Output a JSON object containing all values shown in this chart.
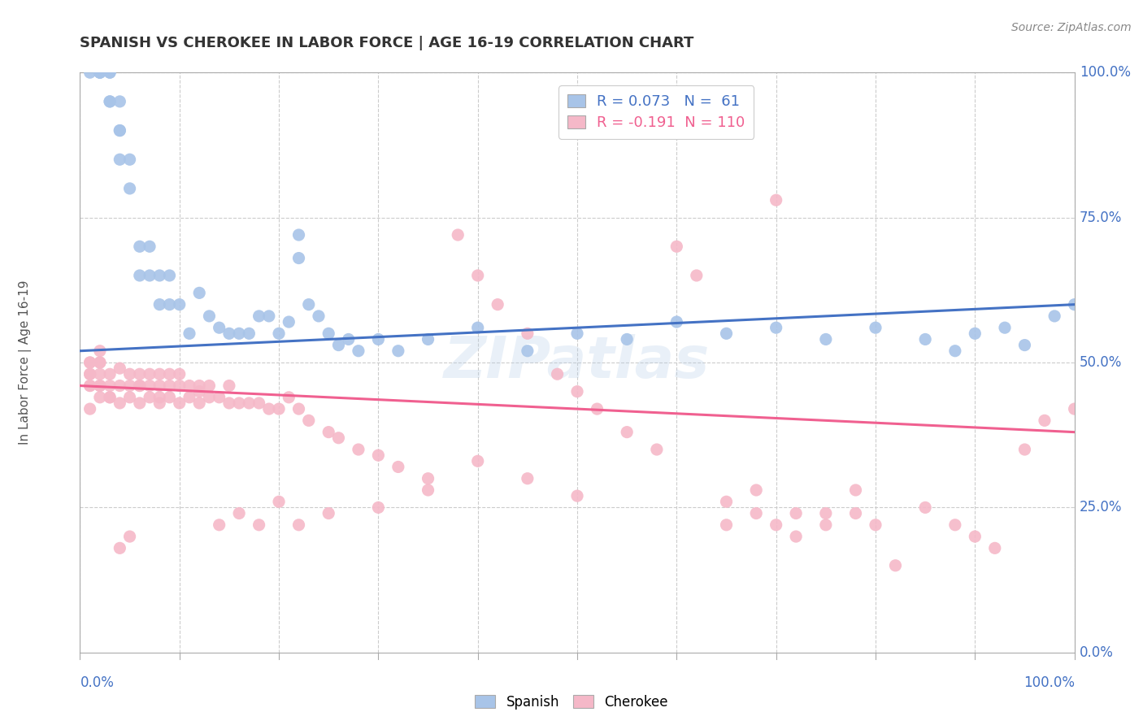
{
  "title": "SPANISH VS CHEROKEE IN LABOR FORCE | AGE 16-19 CORRELATION CHART",
  "source": "Source: ZipAtlas.com",
  "ylabel": "In Labor Force | Age 16-19",
  "ytick_labels": [
    "0.0%",
    "25.0%",
    "50.0%",
    "75.0%",
    "100.0%"
  ],
  "ytick_values": [
    0,
    25,
    50,
    75,
    100
  ],
  "xlim": [
    -1,
    101
  ],
  "ylim": [
    -2,
    105
  ],
  "spanish_color": "#a8c4e8",
  "cherokee_color": "#f5b8c8",
  "spanish_line_color": "#4472c4",
  "cherokee_line_color": "#f06090",
  "title_fontsize": 13,
  "label_fontsize": 11,
  "tick_fontsize": 12,
  "watermark_text": "ZIPatlas",
  "spanish_R": 0.073,
  "spanish_N": 61,
  "cherokee_R": -0.191,
  "cherokee_N": 110,
  "spanish_line_y0": 52,
  "spanish_line_y1": 60,
  "cherokee_line_y0": 46,
  "cherokee_line_y1": 38,
  "spanish_x": [
    1,
    2,
    2,
    2,
    3,
    3,
    3,
    3,
    4,
    4,
    4,
    4,
    5,
    5,
    6,
    6,
    7,
    7,
    8,
    8,
    9,
    9,
    10,
    11,
    12,
    13,
    14,
    15,
    16,
    17,
    18,
    19,
    20,
    21,
    22,
    22,
    23,
    24,
    25,
    26,
    27,
    28,
    30,
    32,
    35,
    40,
    45,
    50,
    55,
    60,
    65,
    70,
    75,
    80,
    85,
    88,
    90,
    93,
    95,
    98,
    100
  ],
  "spanish_y": [
    100,
    100,
    100,
    100,
    95,
    95,
    100,
    100,
    90,
    85,
    90,
    95,
    80,
    85,
    70,
    65,
    70,
    65,
    60,
    65,
    60,
    65,
    60,
    55,
    62,
    58,
    56,
    55,
    55,
    55,
    58,
    58,
    55,
    57,
    72,
    68,
    60,
    58,
    55,
    53,
    54,
    52,
    54,
    52,
    54,
    56,
    52,
    55,
    54,
    57,
    55,
    56,
    54,
    56,
    54,
    52,
    55,
    56,
    53,
    58,
    60
  ],
  "cherokee_x": [
    1,
    1,
    1,
    2,
    2,
    2,
    2,
    3,
    3,
    3,
    4,
    4,
    4,
    5,
    5,
    5,
    6,
    6,
    6,
    7,
    7,
    7,
    8,
    8,
    8,
    9,
    9,
    9,
    10,
    10,
    11,
    11,
    12,
    12,
    13,
    13,
    14,
    15,
    15,
    16,
    17,
    18,
    19,
    20,
    21,
    22,
    23,
    25,
    26,
    28,
    30,
    32,
    35,
    38,
    40,
    42,
    45,
    48,
    50,
    52,
    55,
    58,
    60,
    62,
    65,
    68,
    70,
    72,
    75,
    78,
    80,
    82,
    85,
    88,
    90,
    92,
    95,
    97,
    100,
    50,
    45,
    40,
    35,
    30,
    25,
    22,
    20,
    18,
    16,
    14,
    12,
    10,
    8,
    6,
    5,
    4,
    3,
    2,
    2,
    2,
    1,
    1,
    1,
    1,
    70,
    72,
    65,
    68,
    75,
    78
  ],
  "cherokee_y": [
    46,
    48,
    50,
    44,
    46,
    48,
    50,
    44,
    46,
    48,
    43,
    46,
    49,
    44,
    46,
    48,
    43,
    46,
    48,
    44,
    46,
    48,
    43,
    46,
    48,
    44,
    46,
    48,
    43,
    46,
    44,
    46,
    43,
    46,
    44,
    46,
    44,
    43,
    46,
    43,
    43,
    43,
    42,
    42,
    44,
    42,
    40,
    38,
    37,
    35,
    34,
    32,
    30,
    72,
    65,
    60,
    55,
    48,
    45,
    42,
    38,
    35,
    70,
    65,
    22,
    24,
    78,
    20,
    24,
    28,
    22,
    15,
    25,
    22,
    20,
    18,
    35,
    40,
    42,
    27,
    30,
    33,
    28,
    25,
    24,
    22,
    26,
    22,
    24,
    22,
    45,
    48,
    44,
    46,
    20,
    18,
    44,
    46,
    50,
    52,
    46,
    48,
    50,
    42,
    22,
    24,
    26,
    28,
    22,
    24
  ]
}
